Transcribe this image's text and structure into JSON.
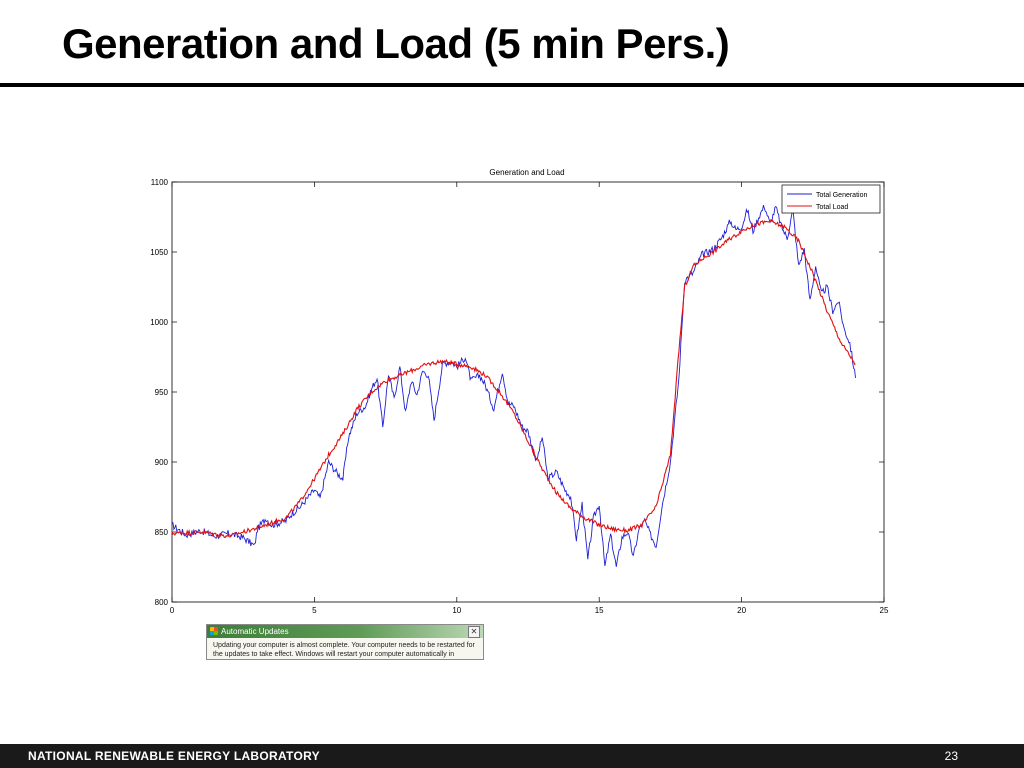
{
  "slide": {
    "title": "Generation and Load (5 min Pers.)",
    "footer_org": "NATIONAL RENEWABLE ENERGY LABORATORY",
    "page_number": "23"
  },
  "popup": {
    "title": "Automatic Updates",
    "close_glyph": "✕",
    "body_text": "Updating your computer is almost complete. Your computer needs to be restarted for the updates to take effect. Windows will restart your computer automatically in"
  },
  "chart_data": {
    "type": "line",
    "title": "Generation and Load",
    "xlabel": "",
    "ylabel": "",
    "xlim": [
      0,
      25
    ],
    "ylim": [
      800,
      1100
    ],
    "xticks": [
      0,
      5,
      10,
      15,
      20,
      25
    ],
    "yticks": [
      800,
      850,
      900,
      950,
      1000,
      1050,
      1100
    ],
    "grid": false,
    "legend_position": "top-right",
    "series": [
      {
        "name": "Total Generation",
        "color": "#1f1fd6",
        "x": [
          0,
          0.5,
          1,
          1.5,
          2,
          2.5,
          2.9,
          3,
          3.3,
          3.5,
          4,
          4.2,
          4.5,
          5,
          5.2,
          5.5,
          5.8,
          6,
          6.2,
          6.5,
          6.8,
          7,
          7.2,
          7.4,
          7.6,
          7.8,
          8,
          8.2,
          8.4,
          8.6,
          8.8,
          9,
          9.2,
          9.5,
          9.8,
          10,
          10.3,
          10.5,
          10.8,
          11,
          11.3,
          11.6,
          11.8,
          12,
          12.3,
          12.5,
          12.8,
          13,
          13.2,
          13.5,
          13.8,
          14,
          14.2,
          14.4,
          14.6,
          14.8,
          15,
          15.2,
          15.4,
          15.6,
          15.8,
          16,
          16.2,
          16.4,
          16.6,
          16.8,
          17,
          17.2,
          17.5,
          17.8,
          18,
          18.3,
          18.6,
          19,
          19.3,
          19.6,
          19.8,
          20,
          20.2,
          20.4,
          20.6,
          20.8,
          21,
          21.2,
          21.4,
          21.6,
          21.8,
          22,
          22.2,
          22.4,
          22.6,
          22.8,
          23,
          23.2,
          23.4,
          23.6,
          23.8,
          24
        ],
        "y": [
          855,
          848,
          851,
          847,
          849,
          846,
          840,
          852,
          860,
          855,
          858,
          863,
          868,
          880,
          874,
          900,
          892,
          888,
          918,
          935,
          940,
          952,
          960,
          925,
          963,
          945,
          968,
          935,
          958,
          948,
          965,
          962,
          930,
          970,
          972,
          968,
          975,
          958,
          962,
          955,
          938,
          965,
          942,
          940,
          925,
          922,
          900,
          918,
          888,
          893,
          880,
          875,
          845,
          870,
          830,
          860,
          870,
          825,
          848,
          825,
          846,
          850,
          832,
          852,
          858,
          848,
          840,
          868,
          900,
          960,
          1030,
          1035,
          1048,
          1052,
          1060,
          1072,
          1066,
          1068,
          1080,
          1065,
          1075,
          1083,
          1070,
          1082,
          1068,
          1060,
          1080,
          1040,
          1052,
          1015,
          1040,
          1020,
          1025,
          1008,
          1015,
          995,
          985,
          960
        ]
      },
      {
        "name": "Total Load",
        "color": "#e01010",
        "x": [
          0,
          1,
          2,
          3,
          4,
          4.5,
          5,
          5.5,
          6,
          6.5,
          7,
          7.5,
          8,
          8.5,
          9,
          9.5,
          10,
          10.5,
          11,
          11.5,
          12,
          12.5,
          13,
          13.5,
          14,
          14.5,
          15,
          15.5,
          16,
          16.5,
          17,
          17.5,
          17.8,
          18,
          18.3,
          18.6,
          19,
          19.5,
          20,
          20.5,
          21,
          21.5,
          22,
          22.5,
          23,
          23.5,
          24
        ],
        "y": [
          849,
          850,
          847,
          853,
          860,
          872,
          888,
          905,
          920,
          938,
          950,
          958,
          962,
          966,
          970,
          972,
          970,
          968,
          962,
          950,
          935,
          915,
          895,
          878,
          867,
          860,
          855,
          852,
          851,
          855,
          868,
          905,
          980,
          1025,
          1040,
          1045,
          1050,
          1058,
          1065,
          1070,
          1072,
          1068,
          1058,
          1035,
          1008,
          985,
          970
        ]
      }
    ]
  }
}
